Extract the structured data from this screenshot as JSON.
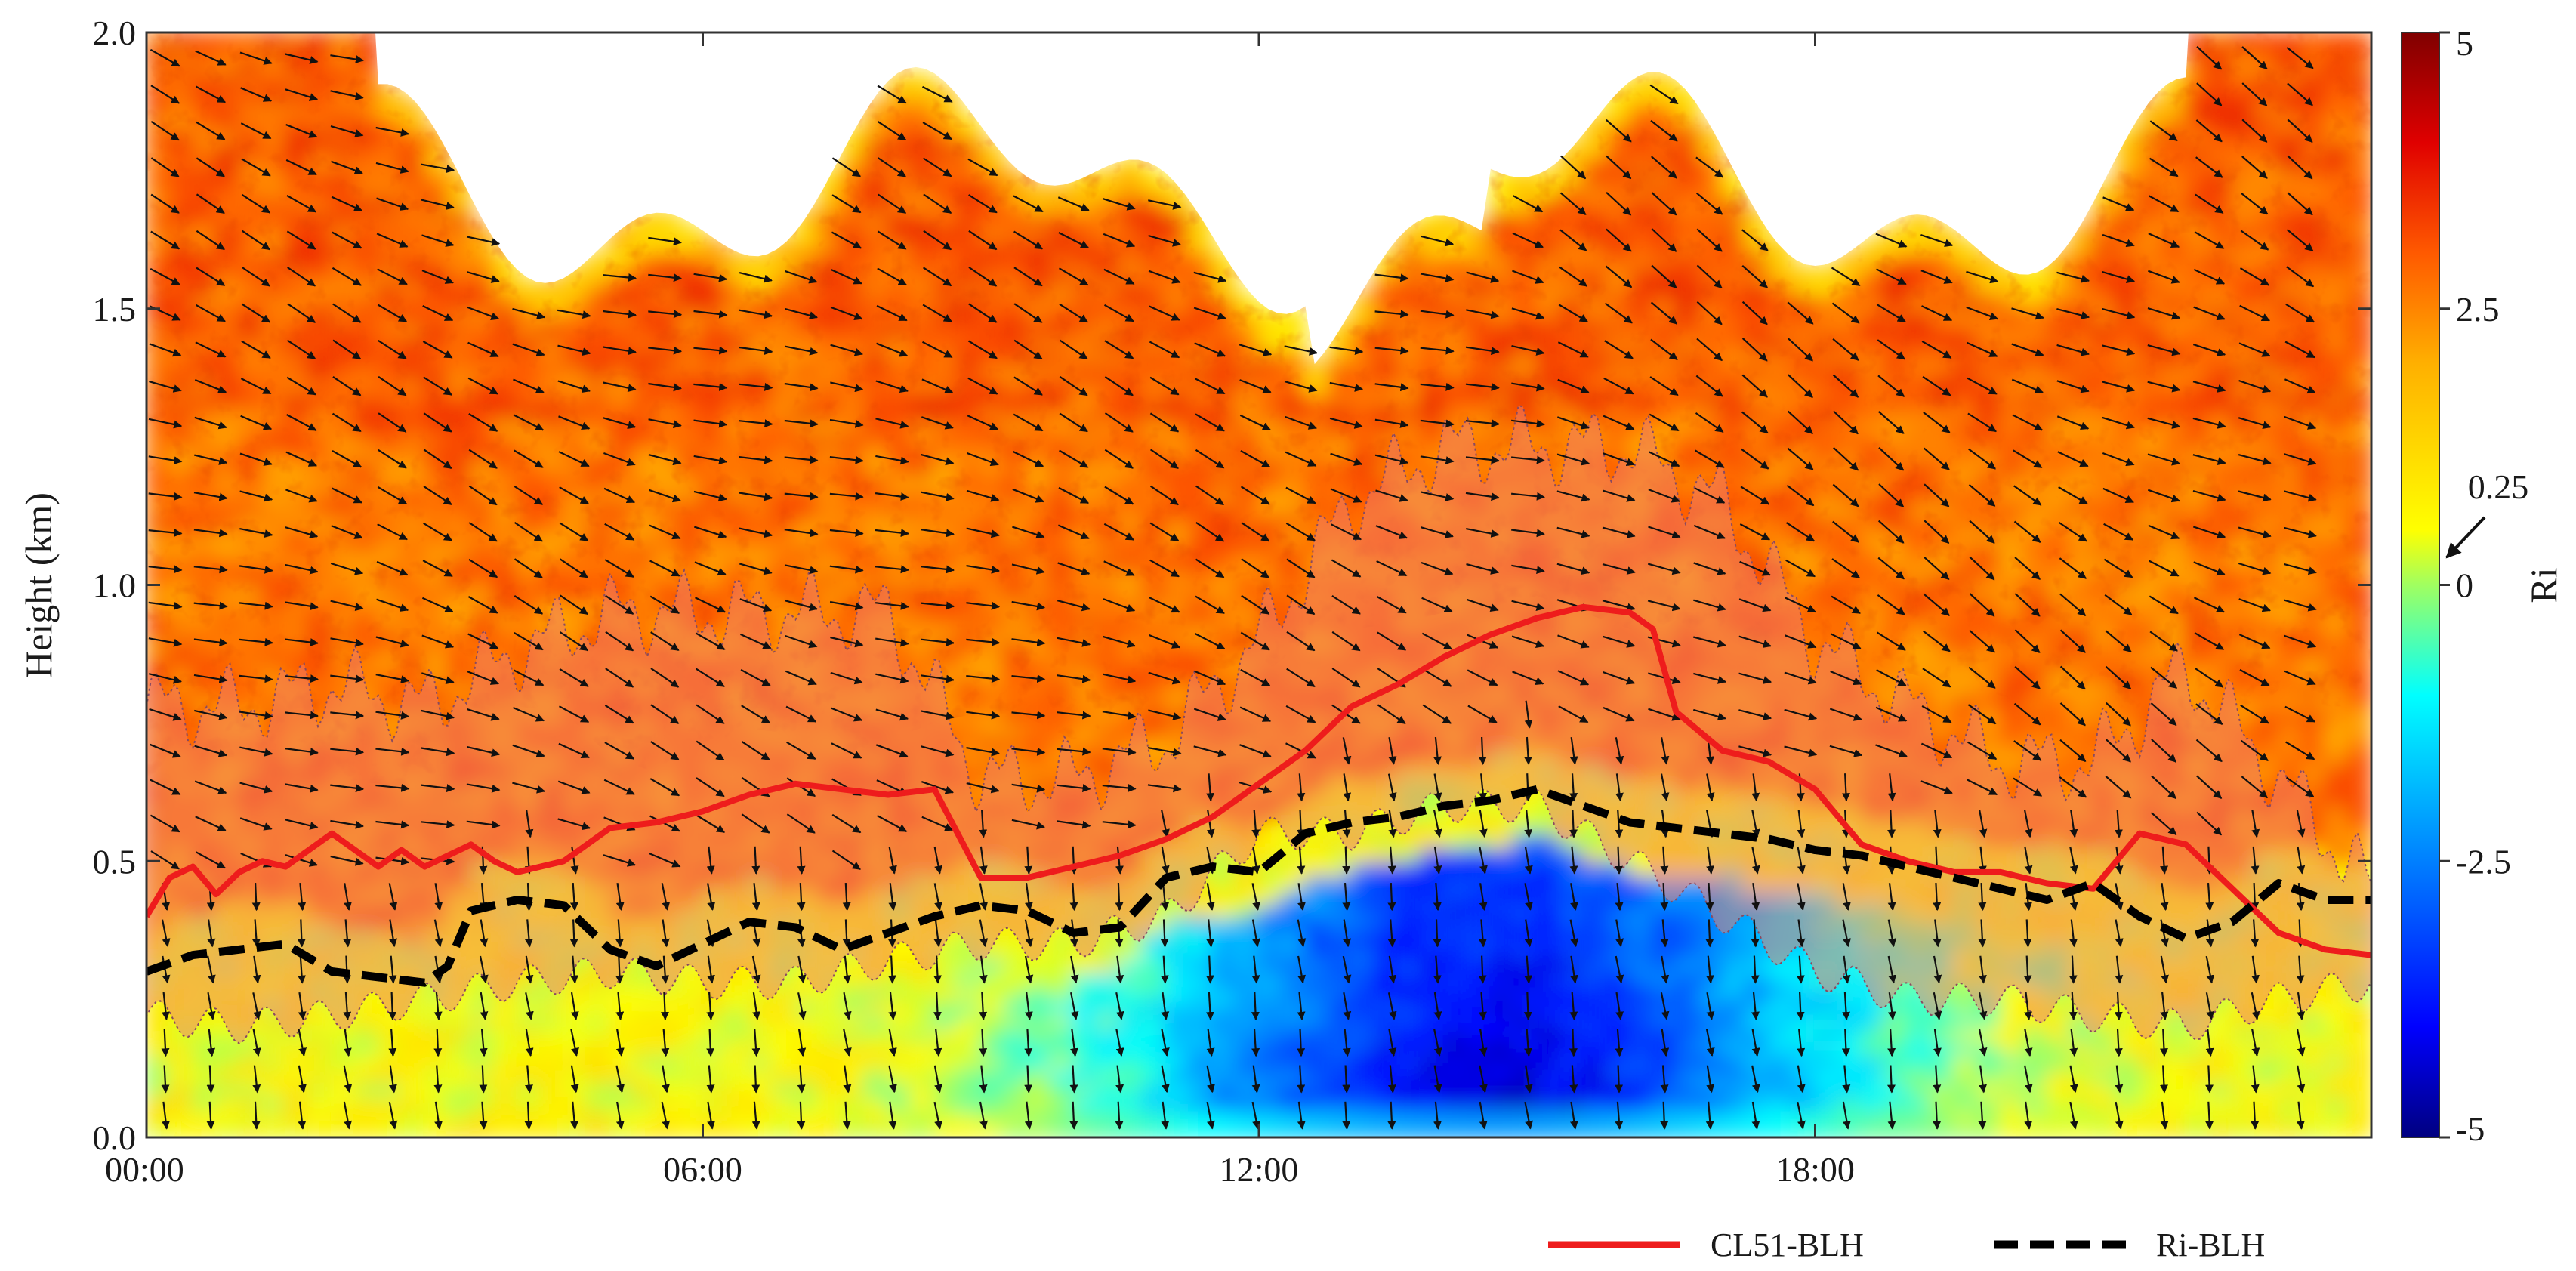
{
  "chart_data": {
    "type": "heatmap",
    "title": "",
    "xlabel": "",
    "ylabel": "Height (km)",
    "xlim": [
      0,
      24
    ],
    "ylim": [
      0,
      2.0
    ],
    "x_ticks": [
      0,
      6,
      12,
      18
    ],
    "x_tick_labels": [
      "00:00",
      "06:00",
      "12:00",
      "18:00"
    ],
    "y_ticks": [
      0,
      0.5,
      1.0,
      1.5,
      2.0
    ],
    "y_tick_labels": [
      "0.0",
      "0.5",
      "1.0",
      "1.5",
      "2.0"
    ],
    "colorbar": {
      "label": "Ri",
      "range": [
        -5,
        5
      ],
      "ticks": [
        5,
        2.5,
        0,
        -2.5,
        -5
      ],
      "tick_labels": [
        "5",
        "2.5",
        "0",
        "-2.5",
        "-5"
      ],
      "annotation": "0.25",
      "annotation_value": 0.25,
      "colors": [
        "#000080",
        "#0000ff",
        "#0080ff",
        "#00ffff",
        "#80ff80",
        "#ffff00",
        "#ffb000",
        "#ff5000",
        "#e00000",
        "#800000"
      ]
    },
    "series": [
      {
        "name": "CL51-BLH",
        "style": "solid",
        "color": "#ee1c1c",
        "x": [
          0,
          0.25,
          0.5,
          0.75,
          1,
          1.25,
          1.5,
          2,
          2.5,
          2.75,
          3,
          3.5,
          3.75,
          4,
          4.5,
          5,
          5.5,
          6,
          6.5,
          7,
          7.5,
          8,
          8.5,
          8.75,
          9,
          9.5,
          10,
          10.5,
          11,
          11.5,
          12,
          12.5,
          13,
          13.5,
          14,
          14.5,
          15,
          15.5,
          16,
          16.25,
          16.5,
          17,
          17.5,
          18,
          18.5,
          19,
          19.5,
          20,
          20.5,
          21,
          21.5,
          22,
          22.5,
          23,
          23.5,
          24
        ],
        "values": [
          0.4,
          0.47,
          0.49,
          0.44,
          0.48,
          0.5,
          0.49,
          0.55,
          0.49,
          0.52,
          0.49,
          0.53,
          0.5,
          0.48,
          0.5,
          0.56,
          0.57,
          0.59,
          0.62,
          0.64,
          0.63,
          0.62,
          0.63,
          0.55,
          0.47,
          0.47,
          0.49,
          0.51,
          0.54,
          0.58,
          0.64,
          0.7,
          0.78,
          0.82,
          0.87,
          0.91,
          0.94,
          0.96,
          0.95,
          0.92,
          0.77,
          0.7,
          0.68,
          0.63,
          0.53,
          0.5,
          0.48,
          0.48,
          0.46,
          0.45,
          0.55,
          0.53,
          0.45,
          0.37,
          0.34,
          0.33
        ]
      },
      {
        "name": "Ri-BLH",
        "style": "dashed",
        "color": "#000000",
        "x": [
          0,
          0.5,
          1,
          1.5,
          2,
          2.5,
          3,
          3.25,
          3.5,
          4,
          4.5,
          5,
          5.5,
          6,
          6.5,
          7,
          7.5,
          8,
          8.5,
          9,
          9.5,
          10,
          10.5,
          11,
          11.5,
          12,
          12.5,
          13,
          13.5,
          14,
          14.5,
          15,
          15.5,
          16,
          16.5,
          17,
          17.5,
          18,
          18.5,
          19,
          19.5,
          20,
          20.5,
          21,
          21.5,
          22,
          22.5,
          23,
          23.5,
          24
        ],
        "values": [
          0.3,
          0.33,
          0.34,
          0.35,
          0.3,
          0.29,
          0.28,
          0.31,
          0.41,
          0.43,
          0.42,
          0.34,
          0.31,
          0.35,
          0.39,
          0.38,
          0.34,
          0.37,
          0.4,
          0.42,
          0.41,
          0.37,
          0.38,
          0.47,
          0.49,
          0.48,
          0.55,
          0.57,
          0.58,
          0.6,
          0.61,
          0.63,
          0.6,
          0.57,
          0.56,
          0.55,
          0.54,
          0.52,
          0.51,
          0.49,
          0.47,
          0.45,
          0.43,
          0.46,
          0.4,
          0.36,
          0.39,
          0.46,
          0.43,
          0.43
        ]
      }
    ],
    "legend": [
      "CL51-BLH",
      "Ri-BLH"
    ],
    "legend_position": "bottom-right",
    "shaded_bands": {
      "description": "Boundary-layer transition zone (light red translucent overlay)",
      "x": [
        0,
        1,
        2,
        3,
        4,
        5,
        6,
        7,
        8,
        9,
        10,
        11,
        12,
        13,
        14,
        15,
        16,
        17,
        18,
        19,
        20,
        21,
        22,
        23,
        24
      ],
      "lower": [
        0.22,
        0.2,
        0.22,
        0.25,
        0.28,
        0.3,
        0.28,
        0.28,
        0.32,
        0.35,
        0.35,
        0.4,
        0.55,
        0.55,
        0.6,
        0.6,
        0.5,
        0.4,
        0.3,
        0.25,
        0.25,
        0.22,
        0.2,
        0.25,
        0.28
      ],
      "upper": [
        0.78,
        0.78,
        0.82,
        0.78,
        0.88,
        0.95,
        0.95,
        0.95,
        0.95,
        0.65,
        0.65,
        0.72,
        0.9,
        1.15,
        1.25,
        1.25,
        1.25,
        1.15,
        0.9,
        0.78,
        0.68,
        0.68,
        0.85,
        0.65,
        0.45
      ]
    },
    "wind_vectors": "arrows overlaid on the grid showing horizontal wind direction"
  }
}
